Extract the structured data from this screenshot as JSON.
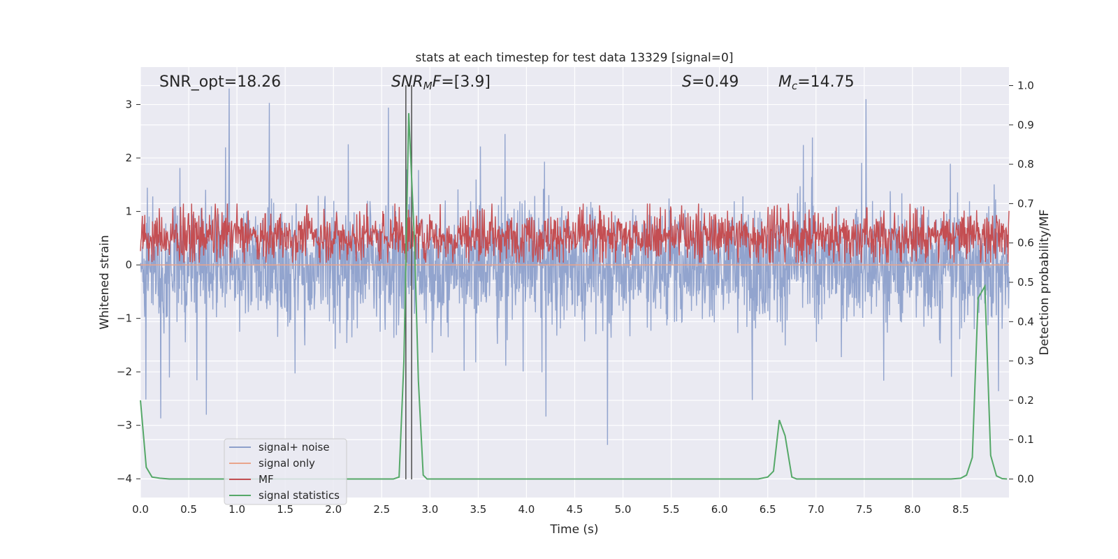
{
  "chart_data": {
    "type": "line",
    "title": "stats at each timestep for test data 13329 [signal=0]",
    "xlabel": "Time (s)",
    "ylabel_left": "Whitened strain",
    "ylabel_right": "Detection probability/MF",
    "xlim": [
      0,
      9
    ],
    "ylim_left": [
      -4.35,
      3.7
    ],
    "ylim_right": [
      -0.047,
      1.047
    ],
    "x_ticks": [
      "0.0",
      "0.5",
      "1.0",
      "1.5",
      "2.0",
      "2.5",
      "3.0",
      "3.5",
      "4.0",
      "4.5",
      "5.0",
      "5.5",
      "6.0",
      "6.5",
      "7.0",
      "7.5",
      "8.0",
      "8.5"
    ],
    "y_left_ticks": [
      "3",
      "2",
      "1",
      "0",
      "−1",
      "−2",
      "−3",
      "−4"
    ],
    "y_right_ticks": [
      "1.0",
      "0.9",
      "0.8",
      "0.7",
      "0.6",
      "0.5",
      "0.4",
      "0.3",
      "0.2",
      "0.1",
      "0.0"
    ],
    "grid": true,
    "legend_position": "lower-left",
    "annotations": {
      "snr_opt": "SNR_opt=18.26",
      "snr_mf_sym": "SNR",
      "snr_mf_sub": "M",
      "snr_mf_sym2": "F",
      "snr_mf_val": "=[3.9]",
      "s_sym": "S",
      "s_val": "=0.49",
      "mc_sym": "M",
      "mc_sub": "c",
      "mc_val": "=14.75"
    },
    "vertical_markers_x": [
      2.75,
      2.81
    ],
    "series": [
      {
        "name": "signal+ noise",
        "color": "#8da0cb",
        "axis": "left",
        "description_amplitude_range": [
          -4.0,
          3.3
        ]
      },
      {
        "name": "signal only",
        "color": "#e9a48b",
        "axis": "left",
        "values_constant": 0
      },
      {
        "name": "MF",
        "color": "#c44e52",
        "axis": "right",
        "band": [
          0.55,
          0.68
        ]
      },
      {
        "name": "signal statistics",
        "color": "#55a868",
        "axis": "right",
        "x": [
          0.0,
          0.06,
          0.12,
          0.2,
          0.3,
          2.5,
          2.62,
          2.68,
          2.73,
          2.78,
          2.84,
          2.88,
          2.93,
          2.97,
          3.0,
          6.4,
          6.5,
          6.56,
          6.62,
          6.68,
          6.75,
          6.8,
          8.4,
          8.5,
          8.56,
          8.62,
          8.68,
          8.75,
          8.81,
          8.87,
          8.93,
          8.98
        ],
        "y": [
          0.2,
          0.03,
          0.005,
          0.002,
          0.0,
          0.0,
          0.0,
          0.005,
          0.3,
          0.93,
          0.6,
          0.25,
          0.01,
          0.0,
          0.0,
          0.0,
          0.005,
          0.02,
          0.15,
          0.11,
          0.005,
          0.0,
          0.0,
          0.002,
          0.01,
          0.055,
          0.46,
          0.49,
          0.06,
          0.008,
          0.001,
          0.0
        ]
      }
    ]
  }
}
